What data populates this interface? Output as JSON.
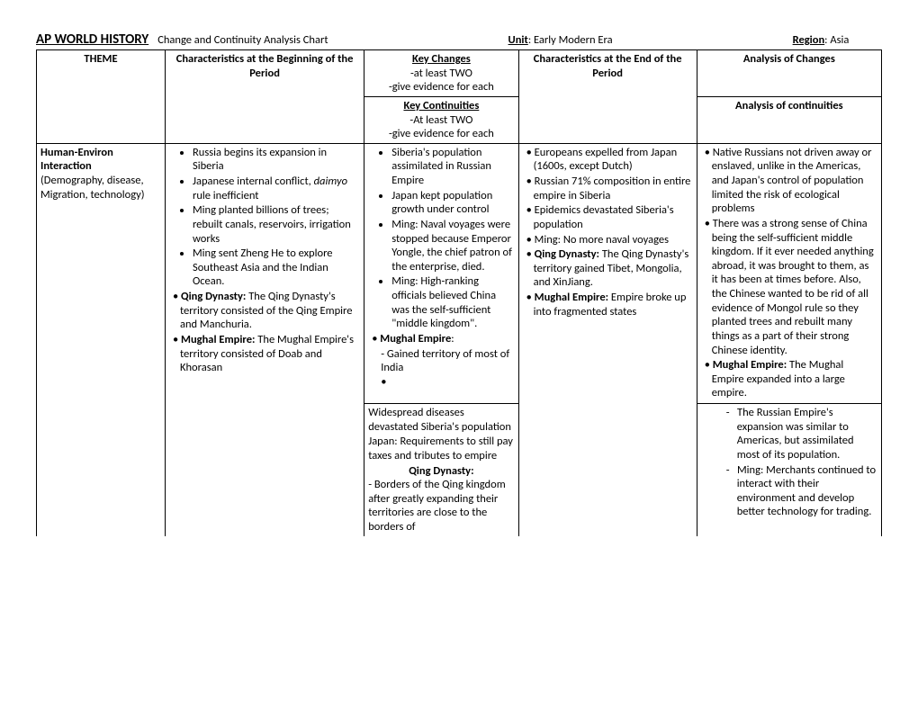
{
  "header": {
    "title": "AP WORLD HISTORY",
    "subtitle": "Change and Continuity Analysis Chart",
    "unit_label": "Unit",
    "unit_value": ": Early Modern Era",
    "region_label": "Region",
    "region_value": ": Asia"
  },
  "headers_row1": {
    "theme": "THEME",
    "beginning": "Characteristics at the Beginning of the Period",
    "changes_title": "Key Changes",
    "changes_sub1": "-at least TWO",
    "changes_sub2": "-give evidence for each",
    "end": "Characteristics at the End of the Period",
    "analysis": "Analysis of Changes"
  },
  "headers_row2": {
    "cont_title": "Key Continuities",
    "cont_sub1": "-At least TWO",
    "cont_sub2": "-give evidence for each",
    "analysis": "Analysis of continuities"
  },
  "row": {
    "theme_title": "Human-Environ Interaction",
    "theme_sub": "(Demography, disease, Migration, technology)",
    "beginning_items": [
      "Russia begins its expansion in Siberia",
      "Japanese internal conflict, <i>daimyo</i> rule inefficient",
      "Ming planted billions of trees; rebuilt canals, reservoirs, irrigation works",
      "Ming sent Zheng He to explore Southeast Asia and the Indian Ocean."
    ],
    "beginning_sub": [
      "<b>Qing Dynasty:</b> The Qing Dynasty's territory consisted of the Qing Empire and Manchuria.",
      "<b>Mughal Empire:</b> The Mughal Empire's territory consisted of Doab and Khorasan"
    ],
    "changes_items": [
      "Siberia's population assimilated in Russian Empire",
      "Japan kept population growth under control",
      "Ming: Naval voyages were stopped because Emperor Yongle, the chief patron of the enterprise, died.",
      "Ming: High-ranking officials believed China was the self-sufficient \"middle kingdom\"."
    ],
    "changes_mughal_head": "Mughal Empire",
    "changes_mughal_line": "- Gained territory of most of India",
    "end_items": [
      "Europeans expelled from Japan (1600s, except Dutch)",
      "Russian 71% composition in entire empire in Siberia",
      "Epidemics devastated Siberia's population",
      "Ming: No more naval voyages",
      "<b>Qing Dynasty:</b> The Qing Dynasty's territory gained Tibet, Mongolia, and XinJiang.",
      "<b>Mughal Empire:</b> Empire broke up into  fragmented states"
    ],
    "analysis_items": [
      "Native Russians not driven away or enslaved, unlike in the Americas, and Japan's control of population limited the risk of ecological problems",
      "There was a strong sense of China being the self-sufficient middle kingdom. If it ever needed anything abroad, it was brought to them, as it has been at times before. Also, the Chinese wanted to be rid of all evidence of Mongol rule so they planted trees and rebuilt many things as a part of their strong Chinese identity.",
      "<b>Mughal Empire:</b> The Mughal Empire expanded into a large empire."
    ],
    "cont_text": [
      "Widespread diseases devastated Siberia's population",
      "Japan:  Requirements to still pay taxes and tributes to empire"
    ],
    "cont_qing_head": "Qing Dynasty:",
    "cont_qing_text": "- Borders of the Qing kingdom after greatly expanding their territories are close to the borders of",
    "cont_analysis": [
      "The Russian Empire's expansion was similar to Americas, but assimilated most of its population.",
      "Ming: Merchants continued to interact with their environment and develop better technology for trading."
    ]
  }
}
